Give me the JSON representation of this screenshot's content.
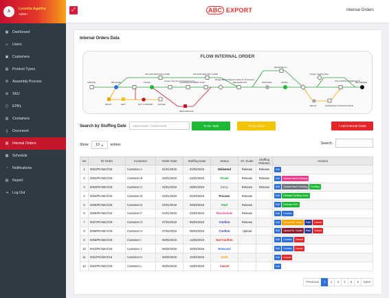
{
  "user": {
    "avatar_initial": "A",
    "name": "Leonita Agatha",
    "role": "Admin"
  },
  "sidebar": {
    "items": [
      {
        "label": "Dashboard",
        "icon": "dashboard-icon",
        "glyph": "▦"
      },
      {
        "label": "Users",
        "icon": "users-icon",
        "glyph": "☺"
      },
      {
        "label": "Customers",
        "icon": "customers-icon",
        "glyph": "▣"
      },
      {
        "label": "Product Types",
        "icon": "product-types-icon",
        "glyph": "▤"
      },
      {
        "label": "Assembly Process",
        "icon": "assembly-icon",
        "glyph": "⚙"
      },
      {
        "label": "SKU",
        "icon": "sku-icon",
        "glyph": "⚙"
      },
      {
        "label": "EPRL",
        "icon": "eprl-icon",
        "glyph": "▢"
      },
      {
        "label": "Containers",
        "icon": "containers-icon",
        "glyph": "▥"
      },
      {
        "label": "Document",
        "icon": "document-icon",
        "glyph": "▯"
      },
      {
        "label": "Internal Orders",
        "icon": "internal-orders-icon",
        "glyph": "▤",
        "active": true
      },
      {
        "label": "Schedule",
        "icon": "schedule-icon",
        "glyph": "▦"
      },
      {
        "label": "Notifications",
        "icon": "bell-icon",
        "glyph": "◔"
      },
      {
        "label": "Report",
        "icon": "report-icon",
        "glyph": "▤"
      },
      {
        "label": "Log Out",
        "icon": "logout-icon",
        "glyph": "⇥"
      }
    ]
  },
  "header": {
    "logo_abc": "ABC",
    "logo_export": "EXPORT",
    "title": "Internal Orders",
    "collapse_icon": "⤢"
  },
  "card": {
    "title": "Internal Orders Data"
  },
  "flow": {
    "title": "FLOW INTERNAL ORDER",
    "nodes": {
      "create": "CREATE",
      "release1": "RELEASE",
      "finish": "FINISH",
      "confirm_payment": "CONFIRM PAYMENT",
      "paid": "PAID",
      "release_spk": "RELEASE SPK",
      "process": "PROCESS",
      "finish2": "FINISH",
      "release_tc": "RELEASE TC",
      "unload_check": "UNLOADING\nTHRESHOLD",
      "delivered": "DELIVERED",
      "draft": "DRAFT",
      "edit": "EDIT",
      "not_confirm": "NOT CONFIRM",
      "cancel": "CANCEL",
      "reschedule": "RESCHEDULE",
      "delay": "DELAY",
      "schedule": "SCHEDULE STUFFING DATE",
      "upload_report": "UPLOAD REPORT GUIDE",
      "upload_guide": "UPLOAD REPORT GUIDE",
      "assign_payment": "Assign Payment & Production No.",
      "range_before": "Range Before Eksport Order To Production",
      "assign_stuffing": "Assign Stuffing Date"
    }
  },
  "search": {
    "label": "Search by Stuffing Date",
    "date_value": "18/01/2019 - 21/01/2019",
    "todo_label": "To Do Task",
    "tobe_label": "To Do Timer",
    "add_label": "+ Add Internal Order",
    "search_label": "Search:",
    "show_label": "Show",
    "show_value": "10",
    "entries_label": "entries"
  },
  "table": {
    "headers": [
      "No",
      "ID Order",
      "Customer",
      "Order Date",
      "Stuffing Date",
      "Status",
      "Dr. Scale",
      "Stuffing Release",
      "Actions"
    ],
    "rows": [
      {
        "no": "1",
        "id": "0001/PI/ABC/I/19",
        "customer": "Customer A",
        "order": "01/01/2019",
        "stuffing": "01/02/2019",
        "status": "Delivered",
        "status_color": "#1a1a1a",
        "drs": "Release",
        "sr": "Release",
        "actions": [
          {
            "label": "Edit",
            "color": "#2e6fd8"
          }
        ]
      },
      {
        "no": "2",
        "id": "0002/PI/ABC/I/19",
        "customer": "Customer B",
        "order": "03/01/2019",
        "stuffing": "24/02/2019",
        "status": "Finish",
        "status_color": "#13a036",
        "drs": "Release",
        "sr": "Release",
        "actions": [
          {
            "label": "Edit",
            "color": "#2e6fd8"
          },
          {
            "label": "Upload Hasil Timbang",
            "color": "#e83e8c"
          }
        ]
      },
      {
        "no": "3",
        "id": "0003/PI/ABC/I/19",
        "customer": "Customer C",
        "order": "04/01/2019",
        "stuffing": "28/02/2019",
        "status": "Delay",
        "status_color": "#888",
        "drs": "Release",
        "sr": "Release",
        "actions": [
          {
            "label": "Edit",
            "color": "#2e6fd8"
          },
          {
            "label": "Upload Hasil Timbang",
            "color": "#6c757d"
          },
          {
            "label": "Stuffing",
            "color": "#1bb934"
          }
        ]
      },
      {
        "no": "4",
        "id": "0004/PI/ABC/I/19",
        "customer": "Customer D",
        "order": "04/01/2019",
        "stuffing": "02/03/2019",
        "status": "Process",
        "status_color": "#1a1a1a",
        "drs": "Release",
        "sr": "",
        "actions": [
          {
            "label": "Edit",
            "color": "#2e6fd8"
          },
          {
            "label": "Release Stuffing Order",
            "color": "#1bb934"
          }
        ]
      },
      {
        "no": "5",
        "id": "0005/PI/ABC/I/19",
        "customer": "Customer E",
        "order": "04/01/2019",
        "stuffing": "03/03/2019",
        "status": "Paid",
        "status_color": "#13a036",
        "drs": "Release",
        "sr": "",
        "actions": [
          {
            "label": "Edit",
            "color": "#2e6fd8"
          },
          {
            "label": "Release SPK",
            "color": "#1bb934"
          }
        ]
      },
      {
        "no": "6",
        "id": "0006/PI/ABC/I/19",
        "customer": "Customer F",
        "order": "04/01/2019",
        "stuffing": "03/03/2019",
        "status": "Reschedule",
        "status_color": "#e83e8c",
        "drs": "Release",
        "sr": "",
        "actions": [
          {
            "label": "Edit",
            "color": "#2e6fd8"
          },
          {
            "label": "Confirm",
            "color": "#2e6fd8"
          }
        ]
      },
      {
        "no": "7",
        "id": "0007/PI/ABC/I/19",
        "customer": "Customer G",
        "order": "07/02/2019",
        "stuffing": "08/03/2019",
        "status": "Confirm",
        "status_color": "#2a3b9a",
        "drs": "Release",
        "sr": "",
        "actions": [
          {
            "label": "Edit",
            "color": "#2e6fd8"
          },
          {
            "label": "Reload Dr. Guide",
            "color": "#f5a300"
          },
          {
            "label": "Paid",
            "color": "#2a3b9a"
          },
          {
            "label": "Cancel",
            "color": "#e3262a"
          }
        ]
      },
      {
        "no": "8",
        "id": "0008/PI/ABC/I/19",
        "customer": "Customer H",
        "order": "07/02/2019",
        "stuffing": "08/03/2019",
        "status": "Confirm",
        "status_color": "#2a3b9a",
        "drs": "Upload",
        "sr": "",
        "actions": [
          {
            "label": "Edit",
            "color": "#2e6fd8"
          },
          {
            "label": "Upload Dr. Guide",
            "color": "#8b1a2b"
          },
          {
            "label": "Paid",
            "color": "#2a3b9a"
          },
          {
            "label": "Cancel",
            "color": "#e3262a"
          }
        ]
      },
      {
        "no": "9",
        "id": "0009/PI/ABC/I/19",
        "customer": "Customer I",
        "order": "08/02/2019",
        "stuffing": "14/03/2019",
        "status": "Not Confirm",
        "status_color": "#e3262a",
        "drs": "",
        "sr": "",
        "actions": [
          {
            "label": "Edit",
            "color": "#2e6fd8"
          },
          {
            "label": "Confirm",
            "color": "#2e6fd8"
          },
          {
            "label": "Cancel",
            "color": "#e3262a"
          }
        ]
      },
      {
        "no": "10",
        "id": "0010/PI/ABC/I/19",
        "customer": "Customer J",
        "order": "08/02/2019",
        "stuffing": "10/03/2019",
        "status": "Released",
        "status_color": "#2e6fd8",
        "drs": "",
        "sr": "",
        "actions": [
          {
            "label": "Edit",
            "color": "#2e6fd8"
          },
          {
            "label": "Confirm",
            "color": "#2e6fd8"
          },
          {
            "label": "Cancel",
            "color": "#e3262a"
          }
        ]
      },
      {
        "no": "11",
        "id": "0011/PI/ABC/I/19",
        "customer": "Customer K",
        "order": "08/02/2019",
        "stuffing": "10/03/2019",
        "status": "Draft",
        "status_color": "#f5a300",
        "drs": "",
        "sr": "",
        "actions": [
          {
            "label": "Edit",
            "color": "#2e6fd8"
          },
          {
            "label": "Cancel",
            "color": "#e3262a"
          }
        ]
      },
      {
        "no": "12",
        "id": "0012/PI/ABC/I/19",
        "customer": "Customer L",
        "order": "08/02/2019",
        "stuffing": "10/03/2019",
        "status": "Cancel",
        "status_color": "#e3262a",
        "drs": "",
        "sr": "",
        "actions": [
          {
            "label": "Edit",
            "color": "#2e6fd8"
          }
        ]
      }
    ]
  },
  "pagination": {
    "prev": "Previous",
    "pages": [
      "1",
      "2",
      "3",
      "4",
      "5",
      "6"
    ],
    "next": "Next",
    "active": "1"
  }
}
